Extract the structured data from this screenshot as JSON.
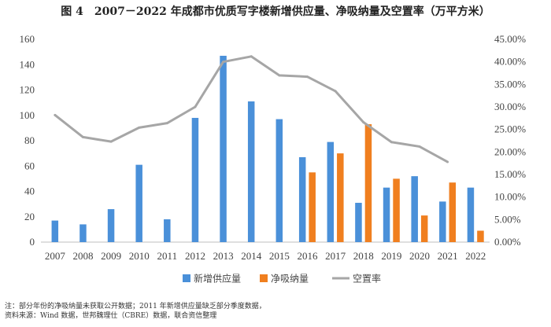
{
  "title": "图 4　2007－2022 年成都市优质写字楼新增供应量、净吸纳量及空置率（万平方米）",
  "notes": [
    "注：部分年份的净吸纳量未获取公开数据；2011 年新增供应量缺乏部分季度数据，",
    "资料来源：Wind 数据，世邦魏理仕（CBRE）数据，联合资信整理"
  ],
  "chart_data": {
    "type": "bar",
    "categories": [
      "2007",
      "2008",
      "2009",
      "2010",
      "2011",
      "2012",
      "2013",
      "2014",
      "2015",
      "2016",
      "2017",
      "2018",
      "2019",
      "2020",
      "2021",
      "2022"
    ],
    "series": [
      {
        "name": "新增供应量",
        "type": "bar",
        "axis": "left",
        "color": "#4a90d9",
        "values": [
          17,
          14,
          26,
          61,
          18,
          98,
          147,
          111,
          97,
          67,
          79,
          31,
          43,
          52,
          32,
          43
        ]
      },
      {
        "name": "净吸纳量",
        "type": "bar",
        "axis": "left",
        "color": "#f07f1f",
        "values": [
          null,
          null,
          null,
          null,
          null,
          null,
          null,
          null,
          null,
          55,
          70,
          93,
          50,
          21,
          47,
          9
        ]
      },
      {
        "name": "空置率",
        "type": "line",
        "axis": "right",
        "color": "#a6a6a6",
        "values": [
          0.282,
          0.233,
          0.223,
          0.254,
          0.264,
          0.3,
          0.4,
          0.412,
          0.37,
          0.367,
          0.335,
          0.266,
          0.222,
          0.212,
          0.178,
          null
        ]
      }
    ],
    "left_axis": {
      "min": 0,
      "max": 160,
      "step": 20,
      "ticks": [
        "0",
        "20",
        "40",
        "60",
        "80",
        "100",
        "120",
        "140",
        "160"
      ]
    },
    "right_axis": {
      "min": 0,
      "max": 0.45,
      "step": 0.05,
      "ticks": [
        "0.00%",
        "5.00%",
        "10.00%",
        "15.00%",
        "20.00%",
        "25.00%",
        "30.00%",
        "35.00%",
        "40.00%",
        "45.00%"
      ]
    },
    "grid": false,
    "legend_position": "bottom"
  }
}
